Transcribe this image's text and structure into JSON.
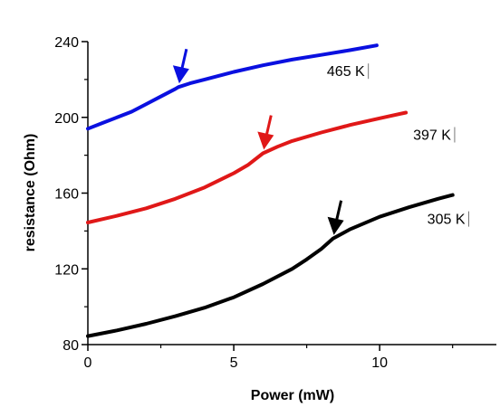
{
  "chart_data": {
    "type": "line",
    "xlabel": "Power (mW)",
    "ylabel": "resistance (Ohm)",
    "xlim": [
      0,
      14
    ],
    "ylim": [
      80,
      240
    ],
    "x_ticks": [
      0,
      5,
      10
    ],
    "y_ticks": [
      80,
      120,
      160,
      200,
      240
    ],
    "grid": false,
    "legend": "none",
    "series": [
      {
        "name": "465 K",
        "color": "#0a10e0",
        "x": [
          0,
          0.5,
          1,
          1.5,
          2,
          2.5,
          3,
          3.1,
          3.5,
          4,
          5,
          6,
          7,
          8,
          9,
          9.9
        ],
        "y": [
          194,
          197,
          200,
          203,
          207,
          211,
          215,
          216,
          218,
          220,
          224,
          227.5,
          230.5,
          233,
          235.5,
          238
        ],
        "arrow_at": {
          "x": 3.1,
          "y": 216
        }
      },
      {
        "name": "397 K",
        "color": "#e01818",
        "x": [
          0,
          1,
          2,
          3,
          4,
          5,
          5.5,
          6,
          6.5,
          7,
          8,
          9,
          10,
          10.9
        ],
        "y": [
          144.5,
          148,
          152,
          157,
          163,
          170.5,
          175,
          181,
          184.5,
          187.5,
          192,
          196,
          199.5,
          202.5
        ],
        "arrow_at": {
          "x": 6,
          "y": 181
        }
      },
      {
        "name": "305 K",
        "color": "#000000",
        "x": [
          0,
          1,
          2,
          3,
          4,
          5,
          6,
          7,
          7.5,
          8,
          8.4,
          9,
          10,
          11,
          12,
          12.5
        ],
        "y": [
          84.5,
          87.5,
          91,
          95,
          99.5,
          105,
          112,
          120,
          125,
          130.5,
          136,
          141,
          147.5,
          152.5,
          157,
          159
        ],
        "arrow_at": {
          "x": 8.4,
          "y": 136
        }
      }
    ]
  }
}
